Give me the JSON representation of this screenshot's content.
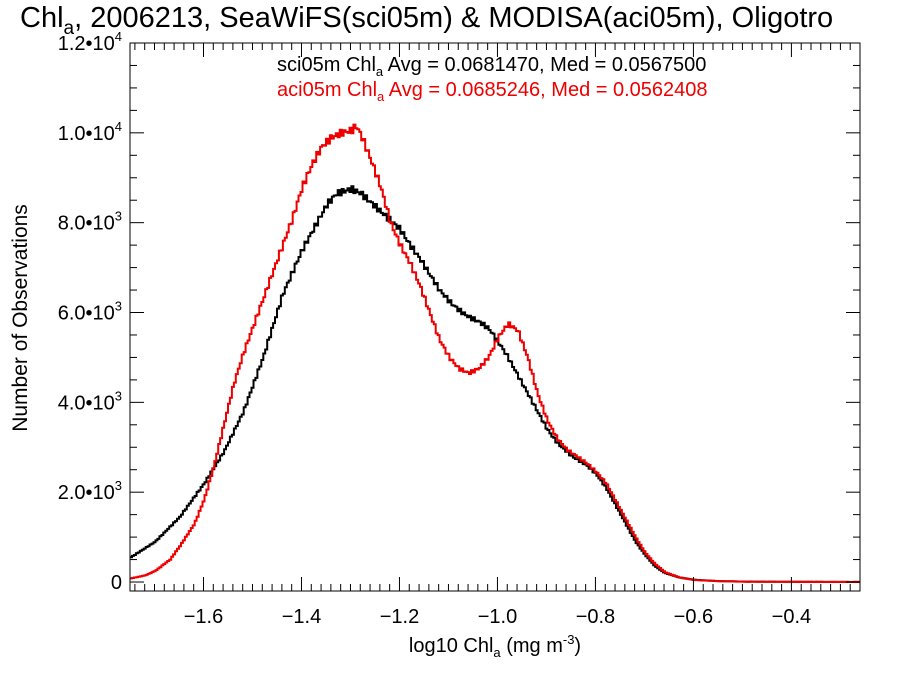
{
  "chart_data": {
    "type": "line",
    "step": true,
    "title": {
      "pre": "Chl",
      "sub": "a",
      "post": ", 2006213, SeaWiFS(sci05m) & MODISA(aci05m), Oligotro"
    },
    "xlabel": {
      "pre": "log10 Chl",
      "sub": "a",
      "mid": " (mg m",
      "sup": "-3",
      "post": ")"
    },
    "ylabel": "Number of Observations",
    "xlim": [
      -1.75,
      -0.26
    ],
    "ylim": [
      -200,
      12000
    ],
    "xticks": [
      -1.6,
      -1.4,
      -1.2,
      -1.0,
      -0.8,
      -0.6,
      -0.4
    ],
    "xtick_labels": [
      "−1.6",
      "−1.4",
      "−1.2",
      "−1.0",
      "−0.8",
      "−0.6",
      "−0.4"
    ],
    "yticks": [
      {
        "value": 0,
        "mant": "0",
        "exp": ""
      },
      {
        "value": 2000,
        "mant": "2.0•10",
        "exp": "3"
      },
      {
        "value": 4000,
        "mant": "4.0•10",
        "exp": "3"
      },
      {
        "value": 6000,
        "mant": "6.0•10",
        "exp": "3"
      },
      {
        "value": 8000,
        "mant": "8.0•10",
        "exp": "3"
      },
      {
        "value": 10000,
        "mant": "1.0•10",
        "exp": "4"
      },
      {
        "value": 12000,
        "mant": "1.2•10",
        "exp": "4"
      }
    ],
    "annotations": [
      {
        "pre": "sci05m Chl",
        "sub": "a",
        "post": " Avg = 0.0681470, Med = 0.0567500",
        "color": "#000000"
      },
      {
        "pre": "aci05m Chl",
        "sub": "a",
        "post": " Avg = 0.0685246, Med = 0.0562408",
        "color": "#ee0000"
      }
    ],
    "series": [
      {
        "color": "#000000",
        "points": [
          [
            -1.75,
            550
          ],
          [
            -1.7,
            900
          ],
          [
            -1.65,
            1450
          ],
          [
            -1.6,
            2200
          ],
          [
            -1.56,
            2900
          ],
          [
            -1.52,
            3800
          ],
          [
            -1.48,
            5000
          ],
          [
            -1.44,
            6400
          ],
          [
            -1.4,
            7400
          ],
          [
            -1.37,
            8000
          ],
          [
            -1.35,
            8400
          ],
          [
            -1.33,
            8650
          ],
          [
            -1.3,
            8750
          ],
          [
            -1.28,
            8650
          ],
          [
            -1.26,
            8450
          ],
          [
            -1.23,
            8150
          ],
          [
            -1.2,
            7850
          ],
          [
            -1.18,
            7500
          ],
          [
            -1.16,
            7200
          ],
          [
            -1.14,
            6850
          ],
          [
            -1.12,
            6500
          ],
          [
            -1.1,
            6250
          ],
          [
            -1.08,
            6050
          ],
          [
            -1.06,
            5900
          ],
          [
            -1.04,
            5800
          ],
          [
            -1.02,
            5650
          ],
          [
            -1.0,
            5350
          ],
          [
            -0.98,
            5000
          ],
          [
            -0.96,
            4600
          ],
          [
            -0.94,
            4200
          ],
          [
            -0.92,
            3800
          ],
          [
            -0.9,
            3400
          ],
          [
            -0.88,
            3100
          ],
          [
            -0.85,
            2800
          ],
          [
            -0.82,
            2600
          ],
          [
            -0.8,
            2400
          ],
          [
            -0.78,
            2100
          ],
          [
            -0.76,
            1700
          ],
          [
            -0.74,
            1300
          ],
          [
            -0.72,
            900
          ],
          [
            -0.7,
            600
          ],
          [
            -0.68,
            350
          ],
          [
            -0.66,
            200
          ],
          [
            -0.63,
            100
          ],
          [
            -0.6,
            50
          ],
          [
            -0.55,
            20
          ],
          [
            -0.5,
            10
          ],
          [
            -0.4,
            5
          ],
          [
            -0.26,
            0
          ]
        ]
      },
      {
        "color": "#ee0000",
        "points": [
          [
            -1.75,
            80
          ],
          [
            -1.72,
            150
          ],
          [
            -1.7,
            250
          ],
          [
            -1.67,
            500
          ],
          [
            -1.65,
            800
          ],
          [
            -1.62,
            1300
          ],
          [
            -1.6,
            1850
          ],
          [
            -1.58,
            2600
          ],
          [
            -1.56,
            3500
          ],
          [
            -1.54,
            4400
          ],
          [
            -1.52,
            5100
          ],
          [
            -1.5,
            5700
          ],
          [
            -1.48,
            6300
          ],
          [
            -1.46,
            6900
          ],
          [
            -1.44,
            7500
          ],
          [
            -1.42,
            8100
          ],
          [
            -1.4,
            8800
          ],
          [
            -1.38,
            9300
          ],
          [
            -1.36,
            9700
          ],
          [
            -1.34,
            9900
          ],
          [
            -1.32,
            10000
          ],
          [
            -1.3,
            10050
          ],
          [
            -1.29,
            10150
          ],
          [
            -1.28,
            9950
          ],
          [
            -1.26,
            9400
          ],
          [
            -1.24,
            8800
          ],
          [
            -1.22,
            8000
          ],
          [
            -1.2,
            7500
          ],
          [
            -1.18,
            7100
          ],
          [
            -1.16,
            6600
          ],
          [
            -1.14,
            6000
          ],
          [
            -1.12,
            5400
          ],
          [
            -1.1,
            5000
          ],
          [
            -1.08,
            4750
          ],
          [
            -1.06,
            4650
          ],
          [
            -1.04,
            4750
          ],
          [
            -1.02,
            5000
          ],
          [
            -1.0,
            5450
          ],
          [
            -0.98,
            5750
          ],
          [
            -0.96,
            5600
          ],
          [
            -0.94,
            5000
          ],
          [
            -0.92,
            4200
          ],
          [
            -0.9,
            3600
          ],
          [
            -0.88,
            3200
          ],
          [
            -0.86,
            2950
          ],
          [
            -0.84,
            2800
          ],
          [
            -0.82,
            2650
          ],
          [
            -0.8,
            2450
          ],
          [
            -0.78,
            2200
          ],
          [
            -0.76,
            1800
          ],
          [
            -0.74,
            1400
          ],
          [
            -0.72,
            1000
          ],
          [
            -0.7,
            650
          ],
          [
            -0.68,
            400
          ],
          [
            -0.66,
            220
          ],
          [
            -0.63,
            100
          ],
          [
            -0.6,
            45
          ],
          [
            -0.55,
            20
          ],
          [
            -0.5,
            8
          ],
          [
            -0.4,
            3
          ],
          [
            -0.26,
            0
          ]
        ]
      }
    ]
  }
}
